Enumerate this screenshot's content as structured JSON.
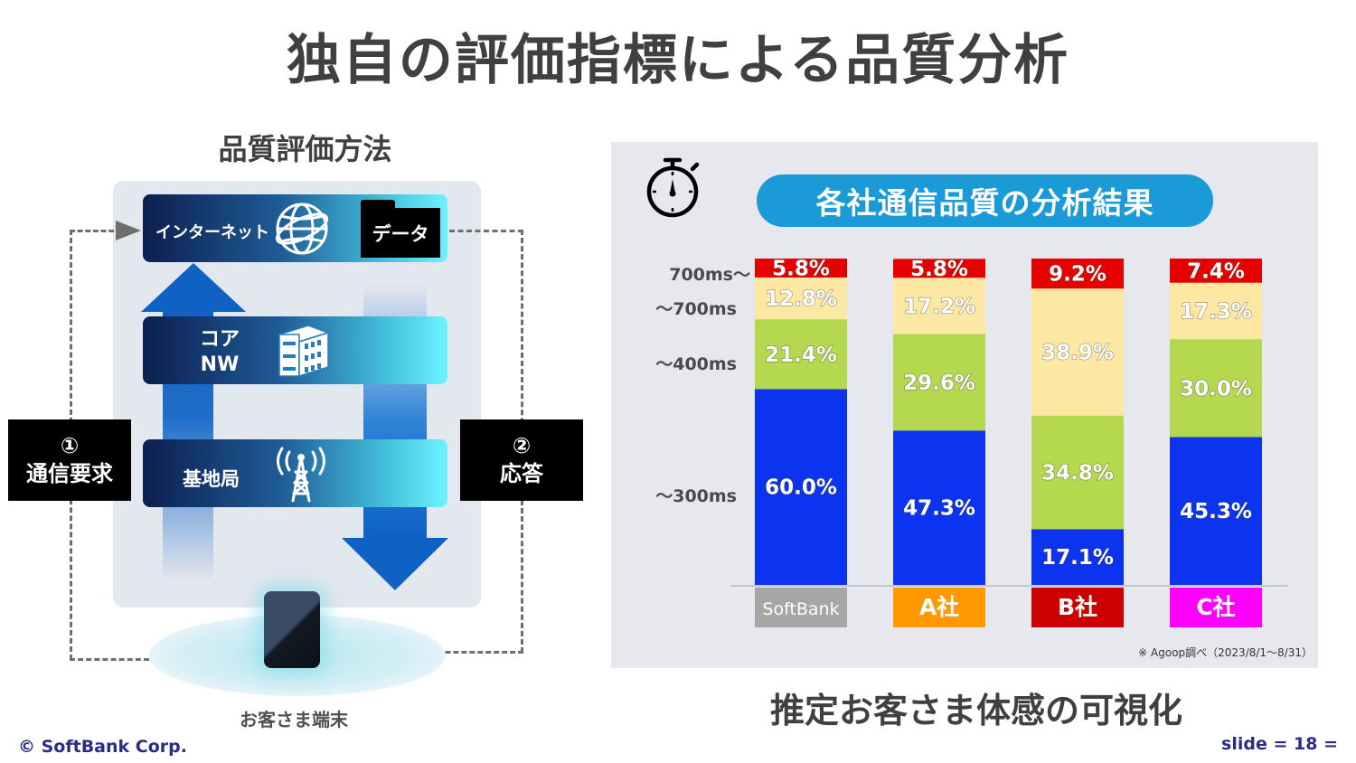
{
  "slide": {
    "title": "独自の評価指標による品質分析",
    "copyright": "© SoftBank Corp.",
    "slide_number": "slide  = 18 ="
  },
  "diagram": {
    "title": "品質評価方法",
    "internet_label": "インターネット",
    "data_label": "データ",
    "core_label_line1": "コア",
    "core_label_line2": "NW",
    "base_station_label": "基地局",
    "request_number": "①",
    "request_label": "通信要求",
    "response_number": "②",
    "response_label": "応答",
    "device_label": "お客さま端末",
    "icons": [
      "globe-icon",
      "server-icon",
      "antenna-icon",
      "smartphone-icon",
      "folder-icon"
    ]
  },
  "chart_data": {
    "type": "bar",
    "stacked": true,
    "title": "各社通信品質の分析結果",
    "categories": [
      "SoftBank",
      "A社",
      "B社",
      "C社"
    ],
    "category_colors": [
      "#a6a6a6",
      "#ff9900",
      "#cc0000",
      "#ff00ff"
    ],
    "series": [
      {
        "name": "～300ms",
        "color": "#0c33f0",
        "values": [
          60.0,
          47.3,
          17.1,
          45.3
        ]
      },
      {
        "name": "～400ms",
        "color": "#b4d84e",
        "values": [
          21.4,
          29.6,
          34.8,
          30.0
        ]
      },
      {
        "name": "～700ms",
        "color": "#fde8a3",
        "values": [
          12.8,
          17.2,
          38.9,
          17.3
        ]
      },
      {
        "name": "700ms～",
        "color": "#e60000",
        "values": [
          5.8,
          5.8,
          9.2,
          7.4
        ]
      }
    ],
    "value_labels": [
      [
        "60.0%",
        "21.4%",
        "12.8%",
        "5.8%"
      ],
      [
        "47.3%",
        "29.6%",
        "17.2%",
        "5.8%"
      ],
      [
        "17.1%",
        "34.8%",
        "38.9%",
        "9.2%"
      ],
      [
        "45.3%",
        "30.0%",
        "17.3%",
        "7.4%"
      ]
    ],
    "ylim": [
      0,
      100
    ],
    "note": "※ Agoop調べ（2023/8/1～8/31）",
    "caption": "推定お客さま体感の可視化",
    "icon": "stopwatch-icon"
  }
}
